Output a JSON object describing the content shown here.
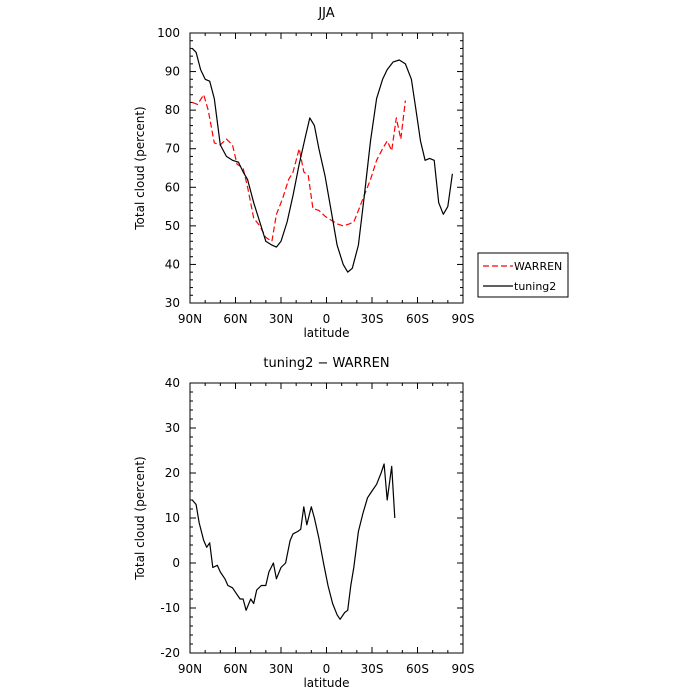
{
  "chart_data": [
    {
      "type": "line",
      "title": "JJA",
      "xlabel": "latitude",
      "ylabel": "Total cloud (percent)",
      "xlim": [
        90,
        -90
      ],
      "ylim": [
        30,
        100
      ],
      "x_ticks": [
        {
          "value": 90,
          "label": "90N"
        },
        {
          "value": 60,
          "label": "60N"
        },
        {
          "value": 30,
          "label": "30N"
        },
        {
          "value": 0,
          "label": "0"
        },
        {
          "value": -30,
          "label": "30S"
        },
        {
          "value": -60,
          "label": "60S"
        },
        {
          "value": -90,
          "label": "90S"
        }
      ],
      "y_ticks": [
        30,
        40,
        50,
        60,
        70,
        80,
        90,
        100
      ],
      "legend_position": "right",
      "series": [
        {
          "name": "WARREN",
          "color": "#ff0000",
          "dash": "dashed",
          "points": [
            [
              88.5,
              82
            ],
            [
              85,
              81.5
            ],
            [
              81,
              84
            ],
            [
              78,
              80
            ],
            [
              74,
              71.5
            ],
            [
              70,
              71
            ],
            [
              66,
              72.5
            ],
            [
              62,
              71
            ],
            [
              59,
              66
            ],
            [
              55,
              65
            ],
            [
              52,
              60
            ],
            [
              48,
              52
            ],
            [
              44,
              50
            ],
            [
              40,
              47
            ],
            [
              36,
              46
            ],
            [
              33,
              53
            ],
            [
              29,
              57
            ],
            [
              25,
              62
            ],
            [
              22,
              64
            ],
            [
              18,
              70
            ],
            [
              15,
              64
            ],
            [
              12,
              63
            ],
            [
              9,
              54.5
            ],
            [
              5,
              54
            ],
            [
              1,
              52.5
            ],
            [
              -3,
              51.5
            ],
            [
              -7,
              50.5
            ],
            [
              -11,
              50
            ],
            [
              -15,
              50.5
            ],
            [
              -18,
              51
            ],
            [
              -22,
              55
            ],
            [
              -26,
              59
            ],
            [
              -29,
              62
            ],
            [
              -33,
              67
            ],
            [
              -37,
              70
            ],
            [
              -40,
              72
            ],
            [
              -43,
              69.5
            ],
            [
              -46,
              78
            ],
            [
              -49,
              72.5
            ],
            [
              -52,
              82.5
            ]
          ]
        },
        {
          "name": "tuning2",
          "color": "#000000",
          "dash": "solid",
          "points": [
            [
              88.5,
              96
            ],
            [
              86,
              95
            ],
            [
              83,
              90.5
            ],
            [
              80,
              88
            ],
            [
              77,
              87.5
            ],
            [
              74,
              83
            ],
            [
              70,
              71
            ],
            [
              66,
              68
            ],
            [
              62,
              67
            ],
            [
              58,
              66.5
            ],
            [
              55,
              64
            ],
            [
              52,
              62
            ],
            [
              48,
              56
            ],
            [
              44,
              51
            ],
            [
              40,
              46
            ],
            [
              36,
              45
            ],
            [
              33,
              44.5
            ],
            [
              30,
              46
            ],
            [
              26,
              51
            ],
            [
              22,
              58
            ],
            [
              18,
              66
            ],
            [
              14,
              73
            ],
            [
              11,
              78
            ],
            [
              8,
              76
            ],
            [
              5,
              70
            ],
            [
              1,
              63
            ],
            [
              -3,
              54
            ],
            [
              -7,
              45
            ],
            [
              -11,
              40
            ],
            [
              -14,
              38
            ],
            [
              -17,
              39
            ],
            [
              -21,
              45
            ],
            [
              -25,
              58
            ],
            [
              -29,
              72
            ],
            [
              -33,
              83
            ],
            [
              -37,
              88
            ],
            [
              -40,
              90.5
            ],
            [
              -44,
              92.5
            ],
            [
              -48,
              93
            ],
            [
              -52,
              92
            ],
            [
              -56,
              88
            ],
            [
              -59,
              80
            ],
            [
              -62,
              72
            ],
            [
              -65,
              67
            ],
            [
              -68,
              67.5
            ],
            [
              -71,
              67
            ],
            [
              -74,
              56
            ],
            [
              -77,
              53
            ],
            [
              -80,
              55
            ],
            [
              -83,
              63.5
            ]
          ]
        }
      ]
    },
    {
      "type": "line",
      "title": "tuning2 − WARREN",
      "xlabel": "latitude",
      "ylabel": "Total cloud (percent)",
      "xlim": [
        90,
        -90
      ],
      "ylim": [
        -20,
        40
      ],
      "x_ticks": [
        {
          "value": 90,
          "label": "90N"
        },
        {
          "value": 60,
          "label": "60N"
        },
        {
          "value": 30,
          "label": "30N"
        },
        {
          "value": 0,
          "label": "0"
        },
        {
          "value": -30,
          "label": "30S"
        },
        {
          "value": -60,
          "label": "60S"
        },
        {
          "value": -90,
          "label": "90S"
        }
      ],
      "y_ticks": [
        -20,
        -10,
        0,
        10,
        20,
        30,
        40
      ],
      "series": [
        {
          "color": "#000000",
          "dash": "solid",
          "points": [
            [
              88.5,
              14
            ],
            [
              86,
              13
            ],
            [
              84,
              9
            ],
            [
              81,
              5
            ],
            [
              79,
              3.5
            ],
            [
              77,
              4.5
            ],
            [
              75,
              -1
            ],
            [
              72,
              -0.5
            ],
            [
              70,
              -2
            ],
            [
              67,
              -3.5
            ],
            [
              65,
              -5
            ],
            [
              62,
              -5.5
            ],
            [
              60,
              -6.5
            ],
            [
              57,
              -8
            ],
            [
              55,
              -8
            ],
            [
              53,
              -10.5
            ],
            [
              50,
              -8
            ],
            [
              48,
              -9
            ],
            [
              46,
              -6
            ],
            [
              43,
              -5
            ],
            [
              40,
              -5
            ],
            [
              38,
              -2
            ],
            [
              35,
              0
            ],
            [
              33,
              -3.5
            ],
            [
              30,
              -1
            ],
            [
              27,
              0
            ],
            [
              24,
              5
            ],
            [
              22,
              6.5
            ],
            [
              19,
              7
            ],
            [
              17,
              7.5
            ],
            [
              15,
              12.5
            ],
            [
              13,
              8.5
            ],
            [
              10,
              12.5
            ],
            [
              8,
              10
            ],
            [
              5,
              5.5
            ],
            [
              2,
              0
            ],
            [
              -1,
              -5
            ],
            [
              -4,
              -9
            ],
            [
              -7,
              -11.5
            ],
            [
              -9,
              -12.5
            ],
            [
              -12,
              -11
            ],
            [
              -14,
              -10.5
            ],
            [
              -16,
              -5
            ],
            [
              -18,
              -1
            ],
            [
              -21,
              7
            ],
            [
              -24,
              11
            ],
            [
              -27,
              14.5
            ],
            [
              -30,
              16
            ],
            [
              -33,
              17.5
            ],
            [
              -36,
              20
            ],
            [
              -38,
              22
            ],
            [
              -40,
              14
            ],
            [
              -43,
              21.5
            ],
            [
              -45,
              10
            ]
          ]
        }
      ]
    }
  ]
}
